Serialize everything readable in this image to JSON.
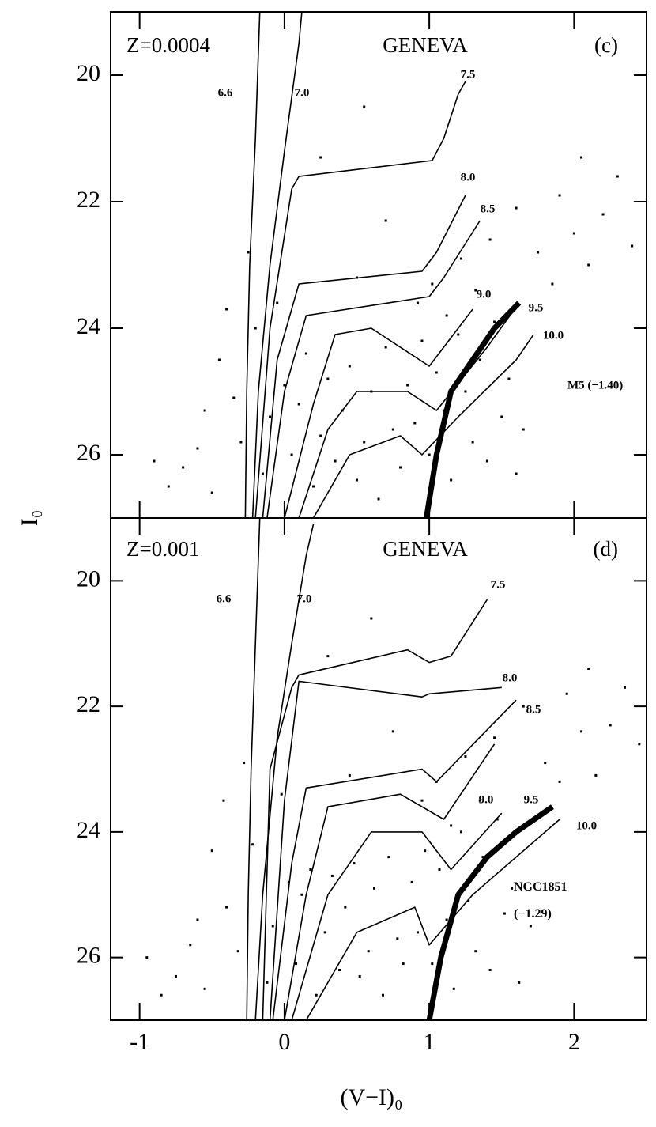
{
  "chart_data": [
    {
      "type": "scatter",
      "ylabel": "I₀",
      "annotations": [
        "Z=0.0004",
        "GENEVA",
        "(c)"
      ],
      "xlim": [
        -1.2,
        2.5
      ],
      "xticks": [
        -1,
        0,
        1,
        2
      ],
      "xtick_labels": false,
      "ylim": [
        27,
        19
      ],
      "yticks": [
        20,
        22,
        24,
        26
      ],
      "series": [
        {
          "name": "6.6",
          "type": "line",
          "color": "#000000",
          "x": [
            -0.27,
            -0.26,
            -0.24,
            -0.2,
            -0.17
          ],
          "y": [
            27,
            25,
            23,
            21,
            19
          ]
        },
        {
          "name": "7.0",
          "type": "line",
          "color": "#000000",
          "x": [
            -0.22,
            -0.18,
            -0.1,
            0.0,
            0.1,
            0.12
          ],
          "y": [
            27,
            25,
            23,
            21.2,
            19.5,
            19.0
          ]
        },
        {
          "name": "7.5",
          "type": "line",
          "color": "#000000",
          "x": [
            -0.2,
            -0.1,
            0.05,
            0.1,
            1.02,
            1.1,
            1.2,
            1.25
          ],
          "y": [
            27,
            24,
            21.8,
            21.6,
            21.35,
            21.0,
            20.3,
            20.1
          ]
        },
        {
          "name": "8.0",
          "type": "line",
          "color": "#000000",
          "x": [
            -0.15,
            -0.05,
            0.1,
            0.95,
            1.05,
            1.25
          ],
          "y": [
            27,
            24.5,
            23.3,
            23.1,
            22.8,
            21.9
          ]
        },
        {
          "name": "8.5",
          "type": "line",
          "color": "#000000",
          "x": [
            -0.12,
            0.0,
            0.15,
            1.0,
            1.1,
            1.35
          ],
          "y": [
            27,
            25,
            23.8,
            23.5,
            23.2,
            22.3
          ]
        },
        {
          "name": "9.0",
          "type": "line",
          "color": "#000000",
          "x": [
            0.0,
            0.2,
            0.35,
            0.6,
            1.0,
            1.3
          ],
          "y": [
            27,
            25.2,
            24.1,
            24.0,
            24.6,
            23.7
          ]
        },
        {
          "name": "9.5",
          "type": "line",
          "color": "#000000",
          "x": [
            0.1,
            0.3,
            0.5,
            0.85,
            1.05,
            1.4,
            1.62
          ],
          "y": [
            27,
            25.6,
            25.0,
            25.0,
            25.3,
            24.3,
            23.6
          ]
        },
        {
          "name": "10.0",
          "type": "line",
          "color": "#000000",
          "x": [
            0.2,
            0.45,
            0.8,
            0.95,
            1.2,
            1.6,
            1.72
          ],
          "y": [
            27,
            26.0,
            25.7,
            26.0,
            25.4,
            24.5,
            24.1
          ]
        },
        {
          "name": "M5 (−1.40)",
          "type": "fiducial",
          "color": "#000000",
          "x": [
            0.98,
            1.05,
            1.15,
            1.3,
            1.45,
            1.62
          ],
          "y": [
            27,
            26,
            25,
            24.5,
            24.0,
            23.6
          ]
        },
        {
          "name": "stars",
          "type": "points",
          "color": "#000000",
          "x": [
            -0.45,
            -0.35,
            -0.3,
            -0.2,
            -0.15,
            -0.1,
            -0.05,
            0.0,
            0.05,
            0.1,
            0.15,
            0.2,
            0.25,
            0.3,
            -0.6,
            -0.7,
            -0.5,
            -0.4,
            -0.25,
            -0.55,
            -0.9,
            -0.8,
            0.35,
            0.4,
            0.45,
            0.5,
            0.55,
            0.6,
            0.65,
            0.7,
            0.75,
            0.8,
            0.85,
            0.9,
            0.95,
            1.0,
            1.05,
            1.1,
            1.15,
            1.2,
            1.25,
            1.3,
            1.35,
            1.4,
            1.45,
            1.5,
            1.55,
            1.6,
            1.65,
            0.92,
            1.02,
            1.12,
            1.22,
            1.32,
            1.42,
            1.6,
            1.75,
            1.9,
            2.0,
            2.1,
            2.2,
            2.3,
            2.4,
            1.85,
            2.05,
            0.55,
            0.25,
            0.7,
            0.5
          ],
          "y": [
            24.5,
            25.1,
            25.8,
            24.0,
            26.3,
            25.4,
            23.6,
            24.9,
            26.0,
            25.2,
            24.4,
            26.5,
            25.7,
            24.8,
            25.9,
            26.2,
            26.6,
            23.7,
            22.8,
            25.3,
            26.1,
            26.5,
            26.1,
            25.3,
            24.6,
            26.4,
            25.8,
            25.0,
            26.7,
            24.3,
            25.6,
            26.2,
            24.9,
            25.5,
            24.2,
            26.0,
            24.7,
            25.3,
            26.4,
            24.1,
            25.0,
            25.8,
            24.5,
            26.1,
            23.9,
            25.4,
            24.8,
            26.3,
            25.6,
            23.6,
            23.3,
            23.8,
            22.9,
            23.4,
            22.6,
            22.1,
            22.8,
            21.9,
            22.5,
            23.0,
            22.2,
            21.6,
            22.7,
            23.3,
            21.3,
            20.5,
            21.3,
            22.3,
            23.2
          ]
        }
      ]
    },
    {
      "type": "scatter",
      "xlabel": "(V−I)₀",
      "annotations": [
        "Z=0.001",
        "GENEVA",
        "(d)"
      ],
      "xlim": [
        -1.2,
        2.5
      ],
      "xticks": [
        -1,
        0,
        1,
        2
      ],
      "xtick_labels": true,
      "ylim": [
        27,
        19
      ],
      "yticks": [
        20,
        22,
        24,
        26
      ],
      "series": [
        {
          "name": "6.6",
          "type": "line",
          "color": "#000000",
          "x": [
            -0.26,
            -0.25,
            -0.23,
            -0.2,
            -0.17
          ],
          "y": [
            27,
            25,
            23,
            21,
            19
          ]
        },
        {
          "name": "7.0",
          "type": "line",
          "color": "#000000",
          "x": [
            -0.2,
            -0.15,
            -0.05,
            0.05,
            0.15,
            0.2
          ],
          "y": [
            27,
            25,
            22.5,
            21.0,
            19.6,
            19.1
          ]
        },
        {
          "name": "7.5",
          "type": "line",
          "color": "#000000",
          "x": [
            -0.15,
            -0.1,
            0.05,
            0.1,
            0.85,
            1.0,
            1.15,
            1.4
          ],
          "y": [
            27,
            23,
            21.7,
            21.5,
            21.1,
            21.3,
            21.2,
            20.3
          ]
        },
        {
          "name": "8.0",
          "type": "line",
          "color": "#000000",
          "x": [
            -0.1,
            0.0,
            0.1,
            0.95,
            1.0,
            1.5
          ],
          "y": [
            27,
            23.5,
            21.6,
            21.85,
            21.8,
            21.7
          ]
        },
        {
          "name": "8.5",
          "type": "line",
          "color": "#000000",
          "x": [
            -0.08,
            0.05,
            0.15,
            0.95,
            1.05,
            1.6
          ],
          "y": [
            27,
            24.5,
            23.3,
            23.0,
            23.2,
            21.9
          ]
        },
        {
          "name": "9.0",
          "type": "line",
          "color": "#000000",
          "x": [
            0.0,
            0.15,
            0.3,
            0.8,
            1.1,
            1.45
          ],
          "y": [
            27,
            25.0,
            23.6,
            23.4,
            23.8,
            22.6
          ]
        },
        {
          "name": "9.5",
          "type": "line",
          "color": "#000000",
          "x": [
            0.05,
            0.3,
            0.6,
            0.95,
            1.15,
            1.5
          ],
          "y": [
            27,
            25.0,
            24.0,
            24.0,
            24.6,
            23.7
          ]
        },
        {
          "name": "10.0",
          "type": "line",
          "color": "#000000",
          "x": [
            0.15,
            0.5,
            0.9,
            1.0,
            1.3,
            1.9
          ],
          "y": [
            27,
            25.6,
            25.2,
            25.8,
            25.0,
            23.8
          ]
        },
        {
          "name": "NGC1851 (−1.29)",
          "type": "fiducial",
          "color": "#000000",
          "x": [
            1.0,
            1.08,
            1.2,
            1.4,
            1.6,
            1.85
          ],
          "y": [
            27,
            26,
            25,
            24.4,
            24.0,
            23.6
          ]
        },
        {
          "name": "stars",
          "type": "points",
          "color": "#000000",
          "x": [
            -0.5,
            -0.4,
            -0.32,
            -0.22,
            -0.12,
            -0.08,
            -0.02,
            0.03,
            0.08,
            0.12,
            0.18,
            0.22,
            0.28,
            0.33,
            -0.65,
            -0.75,
            -0.55,
            -0.42,
            -0.28,
            -0.6,
            -0.95,
            -0.85,
            0.38,
            0.42,
            0.48,
            0.52,
            0.58,
            0.62,
            0.68,
            0.72,
            0.78,
            0.82,
            0.88,
            0.92,
            0.97,
            1.02,
            1.07,
            1.12,
            1.17,
            1.22,
            1.27,
            1.32,
            1.37,
            1.42,
            1.47,
            1.52,
            1.57,
            1.62,
            1.7,
            0.95,
            1.05,
            1.15,
            1.25,
            1.35,
            1.45,
            1.65,
            1.8,
            1.95,
            2.05,
            2.15,
            2.25,
            2.35,
            2.45,
            1.9,
            2.1,
            0.6,
            0.3,
            0.75,
            0.45
          ],
          "y": [
            24.3,
            25.2,
            25.9,
            24.2,
            26.4,
            25.5,
            23.4,
            24.8,
            26.1,
            25.0,
            24.6,
            26.6,
            25.6,
            24.7,
            25.8,
            26.3,
            26.5,
            23.5,
            22.9,
            25.4,
            26.0,
            26.6,
            26.2,
            25.2,
            24.5,
            26.3,
            25.9,
            24.9,
            26.6,
            24.4,
            25.7,
            26.1,
            24.8,
            25.6,
            24.3,
            26.1,
            24.6,
            25.4,
            26.5,
            24.0,
            25.1,
            25.9,
            24.4,
            26.2,
            23.8,
            25.3,
            24.9,
            26.4,
            25.5,
            23.5,
            23.2,
            23.9,
            22.8,
            23.5,
            22.5,
            22.0,
            22.9,
            21.8,
            22.4,
            23.1,
            22.3,
            21.7,
            22.6,
            23.2,
            21.4,
            20.6,
            21.2,
            22.4,
            23.1
          ]
        }
      ]
    }
  ]
}
